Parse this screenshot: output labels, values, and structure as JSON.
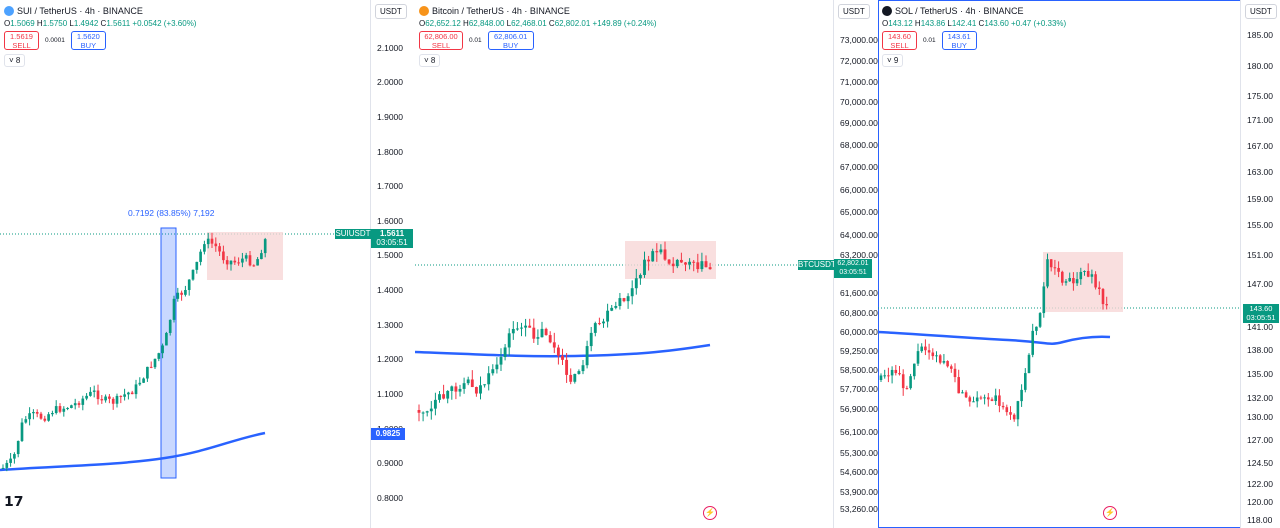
{
  "panels": [
    {
      "symbol": "SUI / TetherUS · 4h · BINANCE",
      "ohlc": {
        "o": "1.5069",
        "h": "1.5750",
        "l": "1.4942",
        "c": "1.5611",
        "chg": "+0.0542 (+3.60%)"
      },
      "sell_price": "1.5619",
      "sell_label": "SELL",
      "spread": "0.0001",
      "buy_price": "1.5620",
      "buy_label": "BUY",
      "indicators_count": "8",
      "currency": "USDT",
      "axis_ticks": [
        "2.1000",
        "2.0000",
        "1.9000",
        "1.8000",
        "1.7000",
        "1.6000",
        "1.5000",
        "1.4000",
        "1.3000",
        "1.2000",
        "1.1000",
        "1.0000",
        "0.9000",
        "0.8000"
      ],
      "ticker_label": "SUIUSDT",
      "last_price": "1.5611",
      "countdown": "03:05:51",
      "ma_price": "0.9825",
      "measure": "0.7192 (83.85%) 7,192",
      "icon_color": "#4da2ff"
    },
    {
      "symbol": "Bitcoin / TetherUS · 4h · BINANCE",
      "ohlc": {
        "o": "62,652.12",
        "h": "62,848.00",
        "l": "62,468.01",
        "c": "62,802.01",
        "chg": "+149.89 (+0.24%)"
      },
      "sell_price": "62,806.00",
      "sell_label": "SELL",
      "spread": "0.01",
      "buy_price": "62,806.01",
      "buy_label": "BUY",
      "indicators_count": "8",
      "currency": "USDT",
      "axis_ticks": [
        "73,000.00",
        "72,000.00",
        "71,000.00",
        "70,000.00",
        "69,000.00",
        "68,000.00",
        "67,000.00",
        "66,000.00",
        "65,000.00",
        "64,000.00",
        "63,200.00",
        "61,600.00",
        "60,800.00",
        "60,000.00",
        "59,250.00",
        "58,500.00",
        "57,700.00",
        "56,900.00",
        "56,100.00",
        "55,300.00",
        "54,600.00",
        "53,900.00",
        "53,260.00"
      ],
      "ticker_label": "BTCUSDT",
      "last_price": "62,802.01",
      "countdown": "03:05:51",
      "icon_color": "#f7931a"
    },
    {
      "symbol": "SOL / TetherUS · 4h · BINANCE",
      "ohlc": {
        "o": "143.12",
        "h": "143.86",
        "l": "142.41",
        "c": "143.60",
        "chg": "+0.47 (+0.33%)"
      },
      "sell_price": "143.60",
      "sell_label": "SELL",
      "spread": "0.01",
      "buy_price": "143.61",
      "buy_label": "BUY",
      "indicators_count": "9",
      "currency": "USDT",
      "axis_ticks": [
        "185.00",
        "180.00",
        "175.00",
        "171.00",
        "167.00",
        "163.00",
        "159.00",
        "155.00",
        "151.00",
        "147.00",
        "141.00",
        "138.00",
        "135.00",
        "132.00",
        "130.00",
        "127.00",
        "124.50",
        "122.00",
        "120.00",
        "118.00"
      ],
      "last_price": "143.60",
      "countdown": "03:05:51",
      "icon_color": "#131722"
    }
  ],
  "colors": {
    "up": "#089981",
    "down": "#f23645",
    "ma": "#2962ff",
    "zone": "#f8d7d7"
  }
}
